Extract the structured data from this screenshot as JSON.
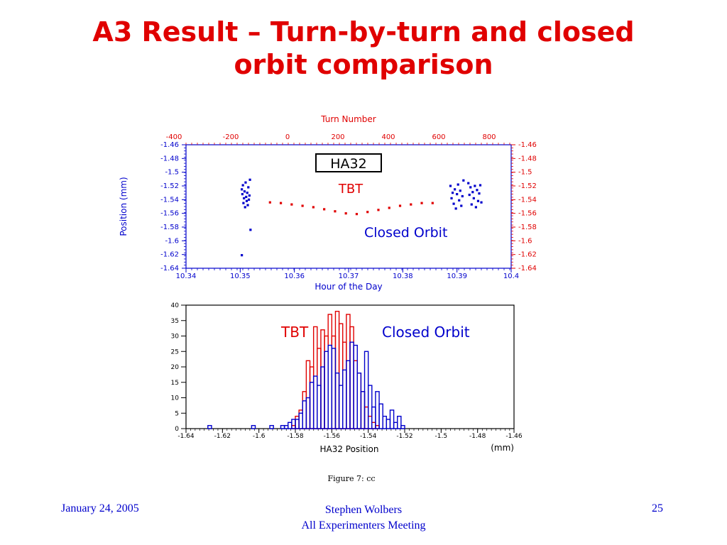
{
  "slide": {
    "title_line1": "A3 Result – Turn-by-turn and closed",
    "title_line2": "orbit comparison",
    "figure_caption": "Figure 7: cc",
    "footer_date": "January 24, 2005",
    "footer_author": "Stephen Wolbers",
    "footer_meeting": "All Experimenters Meeting",
    "footer_page": "25"
  },
  "colors": {
    "title": "#e00000",
    "tbt": "#e00000",
    "closed_orbit": "#0000cc",
    "axis": "#0000cc",
    "footer": "#0000cc"
  },
  "chart_data": [
    {
      "type": "scatter",
      "top_axis_label": "Turn Number",
      "top_ticks": [
        "-400",
        "-200",
        "0",
        "200",
        "400",
        "600",
        "800"
      ],
      "xlabel": "Hour of the Day",
      "x_ticks": [
        "10.34",
        "10.35",
        "10.36",
        "10.37",
        "10.38",
        "10.39",
        "10.4"
      ],
      "xlim": [
        10.34,
        10.4
      ],
      "ylabel_left": "Position    (mm)",
      "ylabel_right": "Position    (mm)",
      "y_ticks": [
        "-1.46",
        "-1.48",
        "-1.5",
        "-1.52",
        "-1.54",
        "-1.56",
        "-1.58",
        "-1.6",
        "-1.62",
        "-1.64"
      ],
      "ylim": [
        -1.64,
        -1.46
      ],
      "grid": false,
      "label_box": "HA32",
      "annotations": [
        "TBT",
        "Closed Orbit"
      ],
      "series": [
        {
          "name": "TBT",
          "color": "#e00000",
          "x": [
            10.3555,
            10.3575,
            10.3595,
            10.3615,
            10.3635,
            10.3655,
            10.3675,
            10.3695,
            10.3715,
            10.3735,
            10.3755,
            10.3775,
            10.3795,
            10.3815,
            10.3835,
            10.3855
          ],
          "y": [
            -1.544,
            -1.545,
            -1.547,
            -1.549,
            -1.551,
            -1.554,
            -1.557,
            -1.56,
            -1.561,
            -1.558,
            -1.555,
            -1.552,
            -1.549,
            -1.547,
            -1.545,
            -1.545
          ]
        },
        {
          "name": "Closed Orbit",
          "color": "#0000cc",
          "x": [
            10.3503,
            10.3504,
            10.3505,
            10.3506,
            10.3507,
            10.3508,
            10.3509,
            10.351,
            10.3511,
            10.3512,
            10.3513,
            10.3514,
            10.3515,
            10.3516,
            10.3517,
            10.3518,
            10.3503,
            10.3519,
            10.3888,
            10.389,
            10.3892,
            10.3894,
            10.3896,
            10.3898,
            10.39,
            10.3902,
            10.3904,
            10.3906,
            10.3908,
            10.391,
            10.3912,
            10.3921,
            10.3923,
            10.3925,
            10.3927,
            10.3929,
            10.3931,
            10.3933,
            10.3935,
            10.3937,
            10.3939,
            10.3941,
            10.3943,
            10.3945
          ],
          "y": [
            -1.525,
            -1.532,
            -1.519,
            -1.545,
            -1.538,
            -1.528,
            -1.551,
            -1.515,
            -1.536,
            -1.542,
            -1.53,
            -1.548,
            -1.522,
            -1.54,
            -1.534,
            -1.511,
            -1.621,
            -1.584,
            -1.52,
            -1.538,
            -1.53,
            -1.546,
            -1.525,
            -1.553,
            -1.532,
            -1.518,
            -1.541,
            -1.527,
            -1.549,
            -1.535,
            -1.512,
            -1.516,
            -1.533,
            -1.522,
            -1.547,
            -1.529,
            -1.538,
            -1.52,
            -1.551,
            -1.526,
            -1.542,
            -1.531,
            -1.519,
            -1.544
          ]
        }
      ]
    },
    {
      "type": "bar",
      "subtype": "step-histogram",
      "xlabel": "HA32 Position",
      "xunit": "(mm)",
      "x_ticks": [
        "-1.64",
        "-1.62",
        "-1.6",
        "-1.58",
        "-1.56",
        "-1.54",
        "-1.52",
        "-1.5",
        "-1.48",
        "-1.46"
      ],
      "xlim": [
        -1.64,
        -1.46
      ],
      "y_ticks": [
        "0",
        "5",
        "10",
        "15",
        "20",
        "25",
        "30",
        "35",
        "40"
      ],
      "ylim": [
        0,
        40
      ],
      "bin_width": 0.002,
      "annotations": [
        "TBT",
        "Closed Orbit"
      ],
      "series": [
        {
          "name": "TBT",
          "color": "#e00000",
          "bin_start": -1.582,
          "values": [
            1,
            4,
            6,
            12,
            22,
            20,
            33,
            26,
            32,
            30,
            37,
            30,
            38,
            34,
            28,
            37,
            33,
            22,
            18,
            12,
            7,
            4,
            2,
            1
          ]
        },
        {
          "name": "Closed Orbit",
          "color": "#0000cc",
          "bin_start": -1.63,
          "values": [
            0,
            1,
            0,
            0,
            0,
            0,
            0,
            0,
            0,
            0,
            0,
            0,
            0,
            1,
            0,
            0,
            0,
            0,
            1,
            0,
            0,
            1,
            1,
            2,
            3,
            3,
            5,
            9,
            10,
            15,
            17,
            14,
            20,
            25,
            27,
            26,
            18,
            14,
            19,
            22,
            28,
            27,
            18,
            12,
            25,
            14,
            7,
            12,
            8,
            4,
            3,
            6,
            2,
            4,
            1
          ]
        }
      ]
    }
  ]
}
